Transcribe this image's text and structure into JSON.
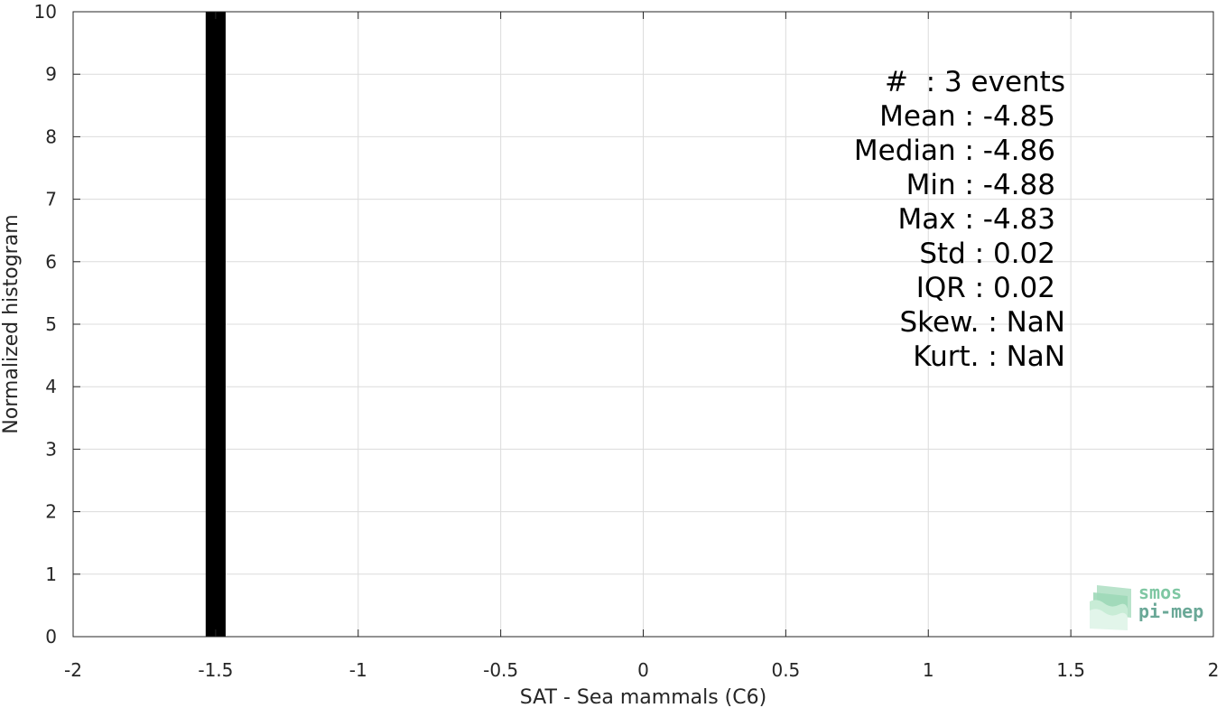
{
  "chart_data": {
    "type": "bar",
    "title": "",
    "xlabel": "SAT - Sea mammals (C6)",
    "ylabel": "Normalized histogram",
    "xlim": [
      -2,
      2
    ],
    "ylim": [
      0,
      10
    ],
    "xticks": [
      "-2",
      "-1.5",
      "-1",
      "-0.5",
      "0",
      "0.5",
      "1",
      "1.5",
      "2"
    ],
    "yticks": [
      "0",
      "1",
      "2",
      "3",
      "4",
      "5",
      "6",
      "7",
      "8",
      "9",
      "10"
    ],
    "grid": true,
    "bars": [
      {
        "x_start": -1.535,
        "x_end": -1.465,
        "value": 10
      }
    ],
    "bar_color": "#000000"
  },
  "stats": {
    "count": "#  : 3 events",
    "mean": "Mean : -4.85",
    "median": "Median : -4.86",
    "min": "Min : -4.88",
    "max": "Max : -4.83",
    "std": "Std : 0.02",
    "iqr": "IQR : 0.02",
    "skew": "Skew. : NaN",
    "kurt": "Kurt. : NaN"
  },
  "logo": {
    "line1": "smos",
    "line2": "pi-mep"
  }
}
